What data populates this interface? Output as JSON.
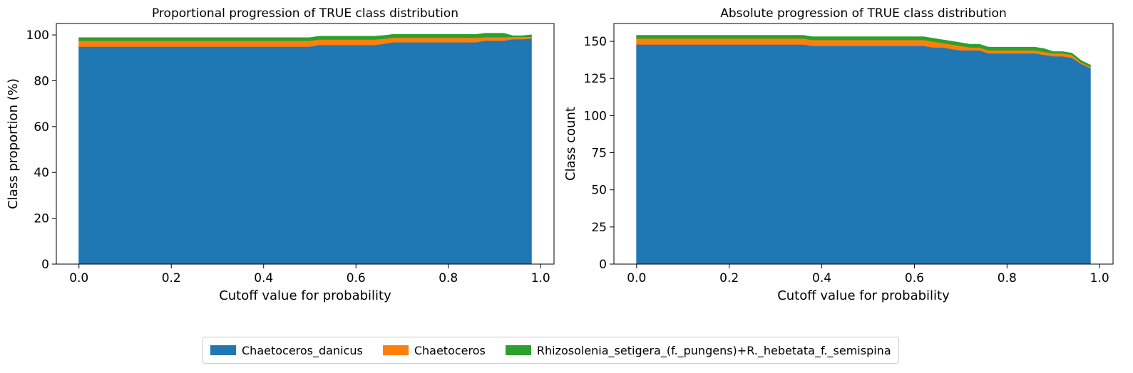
{
  "colors": {
    "chaetoceros_danicus": "#1f77b4",
    "chaetoceros": "#ff7f0e",
    "rhizosolenia": "#2ca02c"
  },
  "legend": {
    "placement": "bottom-center",
    "items": [
      {
        "label": "Chaetoceros_danicus",
        "color": "#1f77b4"
      },
      {
        "label": "Chaetoceros",
        "color": "#ff7f0e"
      },
      {
        "label": "Rhizosolenia_setigera_(f._pungens)+R._hebetata_f._semispina",
        "color": "#2ca02c"
      }
    ]
  },
  "chart_data": [
    {
      "type": "area",
      "stacked": true,
      "title": "Proportional progression of TRUE class distribution",
      "xlabel": "Cutoff value for probability",
      "ylabel": "Class proportion (%)",
      "xlim": [
        -0.049,
        1.029
      ],
      "ylim": [
        0,
        105
      ],
      "xticks": [
        0.0,
        0.2,
        0.4,
        0.6,
        0.8,
        1.0
      ],
      "xtick_labels": [
        "0.0",
        "0.2",
        "0.4",
        "0.6",
        "0.8",
        "1.0"
      ],
      "yticks": [
        0,
        20,
        40,
        60,
        80,
        100
      ],
      "ytick_labels": [
        "0",
        "20",
        "40",
        "60",
        "80",
        "100"
      ],
      "grid": false,
      "x": [
        0.0,
        0.5,
        0.52,
        0.64,
        0.66,
        0.68,
        0.86,
        0.88,
        0.92,
        0.94,
        0.96,
        0.98
      ],
      "series": [
        {
          "name": "Chaetoceros_danicus",
          "values": [
            95.0,
            95.0,
            95.7,
            95.7,
            96.2,
            96.9,
            96.9,
            97.6,
            97.6,
            98.2,
            98.2,
            98.5
          ]
        },
        {
          "name": "Chaetoceros",
          "values": [
            2.5,
            2.5,
            2.4,
            2.4,
            2.2,
            2.0,
            2.0,
            1.5,
            1.5,
            1.0,
            1.0,
            0.8
          ]
        },
        {
          "name": "Rhizosolenia_setigera_(f._pungens)+R._hebetata_f._semispina",
          "values": [
            1.3,
            1.3,
            1.3,
            1.3,
            1.3,
            1.3,
            1.3,
            1.6,
            1.6,
            0.4,
            0.4,
            0.7
          ]
        }
      ]
    },
    {
      "type": "area",
      "stacked": true,
      "title": "Absolute progression of TRUE class distribution",
      "xlabel": "Cutoff value for probability",
      "ylabel": "Class count",
      "xlim": [
        -0.049,
        1.029
      ],
      "ylim": [
        0,
        162
      ],
      "xticks": [
        0.0,
        0.2,
        0.4,
        0.6,
        0.8,
        1.0
      ],
      "xtick_labels": [
        "0.0",
        "0.2",
        "0.4",
        "0.6",
        "0.8",
        "1.0"
      ],
      "yticks": [
        0,
        25,
        50,
        75,
        100,
        125,
        150
      ],
      "ytick_labels": [
        "0",
        "25",
        "50",
        "75",
        "100",
        "125",
        "150"
      ],
      "grid": false,
      "x": [
        0.0,
        0.36,
        0.38,
        0.62,
        0.64,
        0.66,
        0.68,
        0.7,
        0.72,
        0.74,
        0.76,
        0.86,
        0.88,
        0.9,
        0.92,
        0.94,
        0.96,
        0.98
      ],
      "series": [
        {
          "name": "Chaetoceros_danicus",
          "values": [
            148,
            148,
            147,
            147,
            146,
            146,
            145,
            144,
            144,
            144,
            142,
            142,
            141,
            140,
            140,
            139,
            135,
            132
          ]
        },
        {
          "name": "Chaetoceros",
          "values": [
            4,
            4,
            4,
            4,
            4,
            3,
            3,
            3,
            2,
            2,
            2,
            2,
            2,
            2,
            2,
            2,
            1,
            1
          ]
        },
        {
          "name": "Rhizosolenia_setigera_(f._pungens)+R._hebetata_f._semispina",
          "values": [
            2,
            2,
            2,
            2,
            2,
            2,
            2,
            2,
            2,
            2,
            2,
            2,
            2,
            1,
            1,
            1,
            1,
            1
          ]
        }
      ]
    }
  ]
}
